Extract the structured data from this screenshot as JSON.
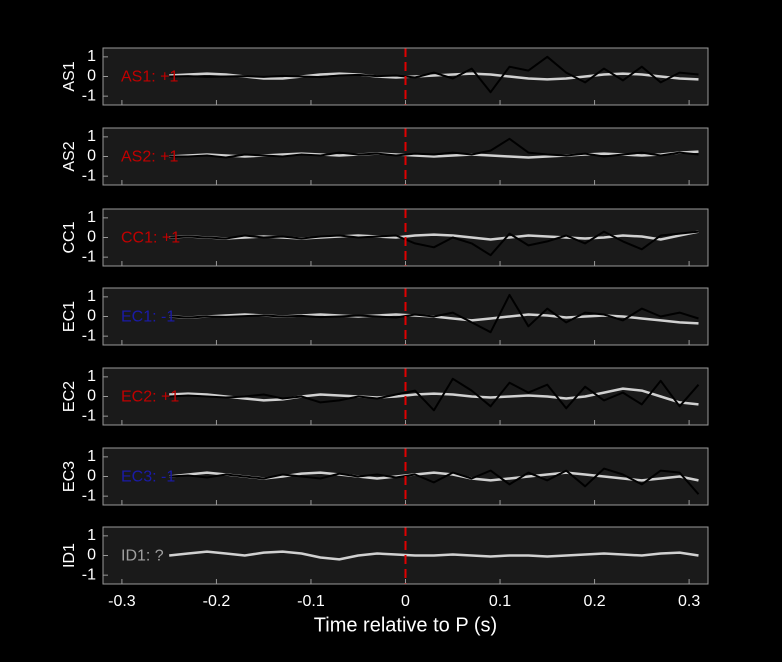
{
  "chart_data": [
    {
      "type": "line",
      "ylabel": "AS1",
      "annotation": "AS1: +1",
      "annotation_color": "#c00000",
      "vline": 0,
      "vline_color": "#e00000",
      "x": [
        -0.25,
        -0.23,
        -0.21,
        -0.19,
        -0.17,
        -0.15,
        -0.13,
        -0.11,
        -0.09,
        -0.07,
        -0.05,
        -0.03,
        -0.01,
        0.01,
        0.03,
        0.05,
        0.07,
        0.09,
        0.11,
        0.13,
        0.15,
        0.17,
        0.19,
        0.21,
        0.23,
        0.25,
        0.27,
        0.29,
        0.31
      ],
      "series": [
        {
          "color": "#d0d0d0",
          "values": [
            0.05,
            0.1,
            0.15,
            0.1,
            0,
            -0.1,
            -0.1,
            0,
            0.1,
            0.15,
            0.1,
            0,
            -0.05,
            0,
            0.05,
            0.1,
            0.15,
            0.1,
            0,
            -0.1,
            -0.15,
            -0.1,
            0,
            0.1,
            0.15,
            0.1,
            0,
            -0.1,
            -0.15
          ]
        },
        {
          "color": "#000000",
          "values": [
            0,
            0.02,
            -0.02,
            0,
            0.02,
            -0.02,
            0.03,
            0,
            -0.03,
            0.05,
            0.08,
            0.02,
            0.05,
            -0.05,
            0.2,
            -0.1,
            0.4,
            -0.8,
            0.5,
            0.3,
            1,
            0.2,
            -0.3,
            0.4,
            -0.2,
            0.5,
            -0.3,
            0.2,
            0.1
          ]
        }
      ],
      "xlim": [
        -0.32,
        0.32
      ],
      "ylim": [
        -1.45,
        1.45
      ],
      "xticks": [
        -0.3,
        -0.2,
        -0.1,
        0,
        0.1,
        0.2,
        0.3
      ],
      "yticks": [
        -1,
        0,
        1
      ]
    },
    {
      "type": "line",
      "ylabel": "AS2",
      "annotation": "AS2: +1",
      "annotation_color": "#c00000",
      "vline": 0,
      "vline_color": "#e00000",
      "x": [
        -0.25,
        -0.23,
        -0.21,
        -0.19,
        -0.17,
        -0.15,
        -0.13,
        -0.11,
        -0.09,
        -0.07,
        -0.05,
        -0.03,
        -0.01,
        0.01,
        0.03,
        0.05,
        0.07,
        0.09,
        0.11,
        0.13,
        0.15,
        0.17,
        0.19,
        0.21,
        0.23,
        0.25,
        0.27,
        0.29,
        0.31
      ],
      "series": [
        {
          "color": "#d0d0d0",
          "values": [
            0,
            0.05,
            0.1,
            0.05,
            0,
            0.05,
            0.1,
            0.15,
            0.1,
            0.05,
            0.1,
            0.15,
            0.1,
            0.05,
            0,
            0.05,
            0.1,
            0.05,
            0,
            -0.05,
            0,
            0.05,
            0.1,
            0.15,
            0.1,
            0.05,
            0.1,
            0.2,
            0.25
          ]
        },
        {
          "color": "#000000",
          "values": [
            0,
            0,
            0.05,
            -0.05,
            0.1,
            0.05,
            0,
            0.1,
            0.05,
            0.2,
            0.1,
            0.15,
            0.05,
            0.15,
            0.1,
            0.2,
            0.1,
            0.3,
            0.9,
            0.2,
            0.1,
            0.05,
            0.15,
            0,
            0.1,
            0.2,
            0.05,
            0.2,
            0.1
          ]
        }
      ],
      "xlim": [
        -0.32,
        0.32
      ],
      "ylim": [
        -1.45,
        1.45
      ],
      "xticks": [
        -0.3,
        -0.2,
        -0.1,
        0,
        0.1,
        0.2,
        0.3
      ],
      "yticks": [
        -1,
        0,
        1
      ]
    },
    {
      "type": "line",
      "ylabel": "CC1",
      "annotation": "CC1: +1",
      "annotation_color": "#c00000",
      "vline": 0,
      "vline_color": "#e00000",
      "x": [
        -0.25,
        -0.23,
        -0.21,
        -0.19,
        -0.17,
        -0.15,
        -0.13,
        -0.11,
        -0.09,
        -0.07,
        -0.05,
        -0.03,
        -0.01,
        0.01,
        0.03,
        0.05,
        0.07,
        0.09,
        0.11,
        0.13,
        0.15,
        0.17,
        0.19,
        0.21,
        0.23,
        0.25,
        0.27,
        0.29,
        0.31
      ],
      "series": [
        {
          "color": "#d0d0d0",
          "values": [
            0,
            0.05,
            0,
            -0.05,
            0,
            0.05,
            0,
            -0.05,
            0,
            0.05,
            0.1,
            0.05,
            0,
            0.1,
            0.15,
            0.1,
            0,
            -0.1,
            0,
            0.1,
            0.05,
            0,
            -0.05,
            0,
            0.1,
            0.05,
            -0.1,
            0.1,
            0.3
          ]
        },
        {
          "color": "#000000",
          "values": [
            0,
            0.05,
            0,
            -0.05,
            0.1,
            0,
            0.05,
            -0.05,
            0.05,
            0.1,
            0,
            0.05,
            0.1,
            -0.3,
            -0.5,
            0,
            -0.3,
            -0.9,
            0.2,
            -0.4,
            -0.2,
            0.1,
            -0.3,
            0.3,
            -0.2,
            -0.6,
            0.1,
            0.2,
            0.3
          ]
        }
      ],
      "xlim": [
        -0.32,
        0.32
      ],
      "ylim": [
        -1.45,
        1.45
      ],
      "xticks": [
        -0.3,
        -0.2,
        -0.1,
        0,
        0.1,
        0.2,
        0.3
      ],
      "yticks": [
        -1,
        0,
        1
      ]
    },
    {
      "type": "line",
      "ylabel": "EC1",
      "annotation": "EC1: -1",
      "annotation_color": "#1a1aa8",
      "vline": 0,
      "vline_color": "#e00000",
      "x": [
        -0.25,
        -0.23,
        -0.21,
        -0.19,
        -0.17,
        -0.15,
        -0.13,
        -0.11,
        -0.09,
        -0.07,
        -0.05,
        -0.03,
        -0.01,
        0.01,
        0.03,
        0.05,
        0.07,
        0.09,
        0.11,
        0.13,
        0.15,
        0.17,
        0.19,
        0.21,
        0.23,
        0.25,
        0.27,
        0.29,
        0.31
      ],
      "series": [
        {
          "color": "#d0d0d0",
          "values": [
            0,
            -0.05,
            0,
            0.05,
            0.1,
            0.05,
            0,
            0.05,
            0.1,
            0.05,
            0,
            0.05,
            0.1,
            0.05,
            0,
            -0.1,
            -0.2,
            -0.1,
            0,
            0.1,
            0.05,
            -0.05,
            0,
            0.05,
            0,
            -0.1,
            -0.2,
            -0.3,
            -0.35
          ]
        },
        {
          "color": "#000000",
          "values": [
            0,
            -0.05,
            0,
            -0.02,
            0.02,
            0.05,
            0,
            0.03,
            -0.03,
            0,
            0.05,
            0,
            -0.05,
            0.1,
            0,
            0.2,
            -0.3,
            -0.8,
            1.1,
            -0.5,
            0.4,
            -0.3,
            0.2,
            0.1,
            -0.2,
            0.4,
            0,
            0.2,
            -0.1
          ]
        }
      ],
      "xlim": [
        -0.32,
        0.32
      ],
      "ylim": [
        -1.45,
        1.45
      ],
      "xticks": [
        -0.3,
        -0.2,
        -0.1,
        0,
        0.1,
        0.2,
        0.3
      ],
      "yticks": [
        -1,
        0,
        1
      ]
    },
    {
      "type": "line",
      "ylabel": "EC2",
      "annotation": "EC2: +1",
      "annotation_color": "#c00000",
      "vline": 0,
      "vline_color": "#e00000",
      "x": [
        -0.25,
        -0.23,
        -0.21,
        -0.19,
        -0.17,
        -0.15,
        -0.13,
        -0.11,
        -0.09,
        -0.07,
        -0.05,
        -0.03,
        -0.01,
        0.01,
        0.03,
        0.05,
        0.07,
        0.09,
        0.11,
        0.13,
        0.15,
        0.17,
        0.19,
        0.21,
        0.23,
        0.25,
        0.27,
        0.29,
        0.31
      ],
      "series": [
        {
          "color": "#d0d0d0",
          "values": [
            0.1,
            0.15,
            0.1,
            0,
            -0.1,
            -0.2,
            -0.15,
            0,
            0.1,
            0.05,
            0,
            -0.05,
            0,
            0.1,
            0.15,
            0.1,
            0,
            -0.05,
            0,
            0.05,
            0,
            -0.1,
            0,
            0.2,
            0.4,
            0.3,
            0,
            -0.3,
            -0.4
          ]
        },
        {
          "color": "#000000",
          "values": [
            0,
            0.05,
            0,
            -0.05,
            0,
            0.1,
            -0.1,
            0,
            -0.3,
            -0.2,
            0,
            -0.1,
            0.1,
            0.3,
            -0.7,
            0.9,
            0.3,
            -0.5,
            0.7,
            0.2,
            0.6,
            -0.6,
            0.5,
            -0.2,
            0.2,
            -0.4,
            0.8,
            -0.5,
            0.6
          ]
        }
      ],
      "xlim": [
        -0.32,
        0.32
      ],
      "ylim": [
        -1.45,
        1.45
      ],
      "xticks": [
        -0.3,
        -0.2,
        -0.1,
        0,
        0.1,
        0.2,
        0.3
      ],
      "yticks": [
        -1,
        0,
        1
      ]
    },
    {
      "type": "line",
      "ylabel": "EC3",
      "annotation": "EC3: -1",
      "annotation_color": "#1a1aa8",
      "vline": 0,
      "vline_color": "#e00000",
      "x": [
        -0.25,
        -0.23,
        -0.21,
        -0.19,
        -0.17,
        -0.15,
        -0.13,
        -0.11,
        -0.09,
        -0.07,
        -0.05,
        -0.03,
        -0.01,
        0.01,
        0.03,
        0.05,
        0.07,
        0.09,
        0.11,
        0.13,
        0.15,
        0.17,
        0.19,
        0.21,
        0.23,
        0.25,
        0.27,
        0.29,
        0.31
      ],
      "series": [
        {
          "color": "#d0d0d0",
          "values": [
            0,
            0.1,
            0.2,
            0.1,
            0,
            -0.1,
            0,
            0.15,
            0.2,
            0.1,
            0,
            -0.1,
            0,
            0.1,
            0.2,
            0.1,
            -0.1,
            -0.2,
            -0.1,
            0,
            0.1,
            0.2,
            0.1,
            0,
            -0.1,
            -0.2,
            -0.1,
            0,
            -0.2
          ]
        },
        {
          "color": "#000000",
          "values": [
            0,
            0.05,
            -0.05,
            0.1,
            0,
            -0.1,
            0.1,
            0,
            -0.1,
            0.15,
            0,
            0.1,
            -0.05,
            0.1,
            -0.3,
            0.2,
            -0.1,
            0.3,
            -0.4,
            0.2,
            -0.2,
            0.3,
            -0.5,
            0.4,
            0.1,
            -0.4,
            0.3,
            0.2,
            -0.9
          ]
        }
      ],
      "xlim": [
        -0.32,
        0.32
      ],
      "ylim": [
        -1.45,
        1.45
      ],
      "xticks": [
        -0.3,
        -0.2,
        -0.1,
        0,
        0.1,
        0.2,
        0.3
      ],
      "yticks": [
        -1,
        0,
        1
      ]
    },
    {
      "type": "line",
      "ylabel": "ID1",
      "annotation": "ID1: ?",
      "annotation_color": "#a0a0a0",
      "vline": 0,
      "vline_color": "#e00000",
      "xlabel": "Time relative to P (s)",
      "x": [
        -0.25,
        -0.23,
        -0.21,
        -0.19,
        -0.17,
        -0.15,
        -0.13,
        -0.11,
        -0.09,
        -0.07,
        -0.05,
        -0.03,
        -0.01,
        0.01,
        0.03,
        0.05,
        0.07,
        0.09,
        0.11,
        0.13,
        0.15,
        0.17,
        0.19,
        0.21,
        0.23,
        0.25,
        0.27,
        0.29,
        0.31
      ],
      "series": [
        {
          "color": "#d0d0d0",
          "values": [
            0,
            0.1,
            0.2,
            0.1,
            0,
            0.15,
            0.2,
            0.1,
            -0.1,
            -0.2,
            0,
            0.1,
            0.05,
            0,
            0,
            0.05,
            0,
            -0.05,
            0,
            0,
            -0.05,
            0,
            0.05,
            0.1,
            0.05,
            0,
            0.1,
            0.15,
            0
          ]
        }
      ],
      "xlim": [
        -0.32,
        0.32
      ],
      "ylim": [
        -1.45,
        1.45
      ],
      "xticks": [
        -0.3,
        -0.2,
        -0.1,
        0,
        0.1,
        0.2,
        0.3
      ],
      "yticks": [
        -1,
        0,
        1
      ]
    }
  ]
}
